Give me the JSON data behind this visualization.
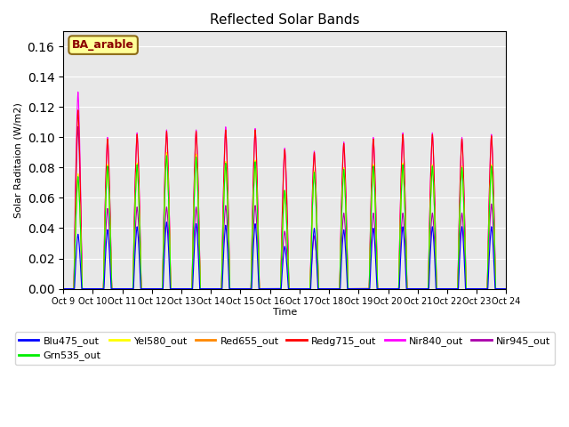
{
  "title": "Reflected Solar Bands",
  "xlabel": "Time",
  "ylabel": "Solar Raditaion (W/m2)",
  "annotation": "BA_arable",
  "ylim": [
    0,
    0.17
  ],
  "series": {
    "Blu475_out": {
      "color": "#0000ff",
      "lw": 0.8
    },
    "Grn535_out": {
      "color": "#00ee00",
      "lw": 0.8
    },
    "Yel580_out": {
      "color": "#ffff00",
      "lw": 0.8
    },
    "Red655_out": {
      "color": "#ff8800",
      "lw": 0.8
    },
    "Redg715_out": {
      "color": "#ff0000",
      "lw": 0.8
    },
    "Nir840_out": {
      "color": "#ff00ff",
      "lw": 0.8
    },
    "Nir945_out": {
      "color": "#aa00aa",
      "lw": 0.8
    }
  },
  "xtick_labels": [
    "Oct 9",
    "Oct 10",
    "Oct 11",
    "Oct 12",
    "Oct 13",
    "Oct 14",
    "Oct 15",
    "Oct 16",
    "Oct 17",
    "Oct 18",
    "Oct 19",
    "Oct 20",
    "Oct 21",
    "Oct 22",
    "Oct 23",
    "Oct 24"
  ],
  "bg_color": "#e8e8e8",
  "legend_fontsize": 8,
  "title_fontsize": 11,
  "annotation_facecolor": "#ffff99",
  "annotation_edgecolor": "#8b6914",
  "annotation_textcolor": "#8b0000",
  "day_peaks_nir840": [
    0.13,
    0.1,
    0.103,
    0.105,
    0.105,
    0.107,
    0.106,
    0.093,
    0.091,
    0.097,
    0.1,
    0.103,
    0.103,
    0.1,
    0.102
  ],
  "day_peaks_redg715": [
    0.118,
    0.099,
    0.102,
    0.104,
    0.104,
    0.105,
    0.105,
    0.092,
    0.09,
    0.096,
    0.099,
    0.102,
    0.102,
    0.099,
    0.101
  ],
  "day_peaks_nir945": [
    0.107,
    0.053,
    0.054,
    0.054,
    0.054,
    0.055,
    0.055,
    0.038,
    0.035,
    0.05,
    0.05,
    0.05,
    0.05,
    0.05,
    0.056
  ],
  "day_peaks_blu475": [
    0.036,
    0.039,
    0.041,
    0.044,
    0.043,
    0.042,
    0.043,
    0.028,
    0.04,
    0.039,
    0.04,
    0.041,
    0.041,
    0.041,
    0.041
  ],
  "day_peaks_grn535": [
    0.074,
    0.081,
    0.082,
    0.088,
    0.087,
    0.083,
    0.084,
    0.065,
    0.077,
    0.079,
    0.081,
    0.082,
    0.081,
    0.08,
    0.081
  ],
  "day_peaks_yel580": [
    0.076,
    0.082,
    0.083,
    0.09,
    0.089,
    0.084,
    0.085,
    0.065,
    0.078,
    0.08,
    0.082,
    0.083,
    0.082,
    0.081,
    0.082
  ],
  "day_peaks_red655": [
    0.075,
    0.081,
    0.082,
    0.089,
    0.088,
    0.084,
    0.084,
    0.065,
    0.077,
    0.079,
    0.081,
    0.082,
    0.081,
    0.08,
    0.081
  ]
}
